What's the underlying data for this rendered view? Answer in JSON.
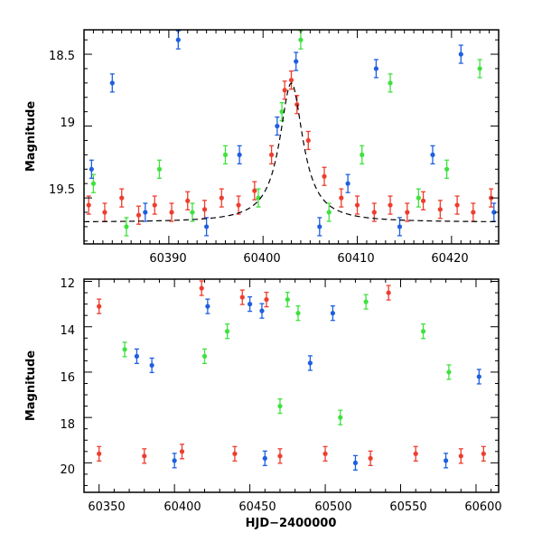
{
  "chart_data": [
    {
      "type": "scatter",
      "title": "",
      "xlabel": "",
      "ylabel": "Magnitude",
      "xlim": [
        60381,
        60425
      ],
      "ylim": [
        19.82,
        18.33
      ],
      "y_inverted": true,
      "grid": false,
      "x_ticks": [
        60390,
        60400,
        60410,
        60420
      ],
      "y_ticks": [
        18.5,
        19,
        19.5
      ],
      "x_tick_labels": [
        "60390",
        "60400",
        "60410",
        "60420"
      ],
      "y_tick_labels": [
        "18.5",
        "19",
        "19.5"
      ],
      "colors": {
        "red": "#ee3d2e",
        "green": "#3ee23e",
        "blue": "#1d5fe0",
        "model": "#000000"
      },
      "series": [
        {
          "color": "red",
          "points": [
            [
              60381.5,
              19.55
            ],
            [
              60383.2,
              19.6
            ],
            [
              60385.0,
              19.5
            ],
            [
              60386.8,
              19.62
            ],
            [
              60388.5,
              19.55
            ],
            [
              60390.3,
              19.6
            ],
            [
              60392.0,
              19.52
            ],
            [
              60393.8,
              19.58
            ],
            [
              60395.6,
              19.5
            ],
            [
              60397.4,
              19.55
            ],
            [
              60399.1,
              19.45
            ],
            [
              60400.9,
              19.2
            ],
            [
              60402.3,
              18.75
            ],
            [
              60403.0,
              18.68
            ],
            [
              60403.6,
              18.85
            ],
            [
              60404.8,
              19.1
            ],
            [
              60406.5,
              19.35
            ],
            [
              60408.3,
              19.5
            ],
            [
              60410.0,
              19.55
            ],
            [
              60411.8,
              19.6
            ],
            [
              60413.5,
              19.55
            ],
            [
              60415.3,
              19.6
            ],
            [
              60417.0,
              19.52
            ],
            [
              60418.8,
              19.58
            ],
            [
              60420.6,
              19.55
            ],
            [
              60422.3,
              19.6
            ],
            [
              60424.2,
              19.5
            ]
          ]
        },
        {
          "color": "green",
          "points": [
            [
              60382.0,
              19.4
            ],
            [
              60385.5,
              19.7
            ],
            [
              60389.0,
              19.3
            ],
            [
              60392.5,
              19.6
            ],
            [
              60396.0,
              19.2
            ],
            [
              60399.5,
              19.5
            ],
            [
              60402.0,
              18.9
            ],
            [
              60404.0,
              18.4
            ],
            [
              60407.0,
              19.6
            ],
            [
              60410.5,
              19.2
            ],
            [
              60413.5,
              18.7
            ],
            [
              60416.5,
              19.5
            ],
            [
              60419.5,
              19.3
            ],
            [
              60423.0,
              18.6
            ]
          ]
        },
        {
          "color": "blue",
          "points": [
            [
              60381.8,
              19.3
            ],
            [
              60384.0,
              18.7
            ],
            [
              60387.5,
              19.6
            ],
            [
              60391.0,
              18.4
            ],
            [
              60394.0,
              19.7
            ],
            [
              60397.5,
              19.2
            ],
            [
              60401.5,
              19.0
            ],
            [
              60403.5,
              18.55
            ],
            [
              60406.0,
              19.7
            ],
            [
              60409.0,
              19.4
            ],
            [
              60412.0,
              18.6
            ],
            [
              60414.5,
              19.7
            ],
            [
              60418.0,
              19.2
            ],
            [
              60421.0,
              18.5
            ],
            [
              60424.5,
              19.6
            ]
          ]
        }
      ],
      "model_curve": {
        "baseline": 19.67,
        "peak_x": 60403.0,
        "peak_y": 18.7,
        "width": 1.5
      }
    },
    {
      "type": "scatter",
      "title": "",
      "xlabel": "HJD−2400000",
      "ylabel": "Magnitude",
      "xlim": [
        60340,
        60615
      ],
      "ylim": [
        21.3,
        11.9
      ],
      "y_inverted": true,
      "grid": false,
      "x_ticks": [
        60350,
        60400,
        60450,
        60500,
        60550,
        60600
      ],
      "y_ticks": [
        12,
        14,
        16,
        18,
        20
      ],
      "x_tick_labels": [
        "60350",
        "60400",
        "60450",
        "60500",
        "60550",
        "60600"
      ],
      "y_tick_labels": [
        "12",
        "14",
        "16",
        "18",
        "20"
      ],
      "colors": {
        "red": "#ee3d2e",
        "green": "#3ee23e",
        "blue": "#1d5fe0"
      },
      "series": [
        {
          "color": "red",
          "points": [
            [
              60350,
              13.1
            ],
            [
              60418,
              12.3
            ],
            [
              60445,
              12.7
            ],
            [
              60461,
              12.8
            ],
            [
              60542,
              12.5
            ],
            [
              60350,
              19.6
            ],
            [
              60380,
              19.7
            ],
            [
              60405,
              19.5
            ],
            [
              60440,
              19.6
            ],
            [
              60470,
              19.7
            ],
            [
              60500,
              19.6
            ],
            [
              60530,
              19.8
            ],
            [
              60560,
              19.6
            ],
            [
              60590,
              19.7
            ],
            [
              60605,
              19.6
            ]
          ]
        },
        {
          "color": "green",
          "points": [
            [
              60367,
              15.0
            ],
            [
              60420,
              15.3
            ],
            [
              60435,
              14.2
            ],
            [
              60475,
              12.8
            ],
            [
              60482,
              13.4
            ],
            [
              60527,
              12.9
            ],
            [
              60565,
              14.2
            ],
            [
              60582,
              16.0
            ],
            [
              60470,
              17.5
            ],
            [
              60510,
              18.0
            ]
          ]
        },
        {
          "color": "blue",
          "points": [
            [
              60422,
              13.1
            ],
            [
              60450,
              13.0
            ],
            [
              60458,
              13.3
            ],
            [
              60505,
              13.4
            ],
            [
              60375,
              15.3
            ],
            [
              60385,
              15.7
            ],
            [
              60490,
              15.6
            ],
            [
              60602,
              16.2
            ],
            [
              60400,
              19.9
            ],
            [
              60460,
              19.8
            ],
            [
              60520,
              20.0
            ],
            [
              60580,
              19.9
            ]
          ]
        }
      ]
    }
  ]
}
